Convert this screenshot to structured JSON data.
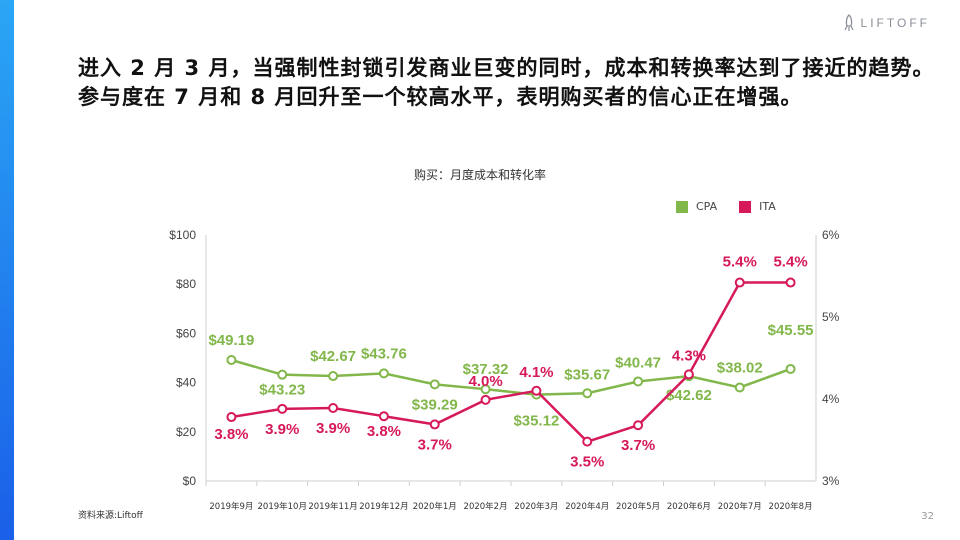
{
  "brand": {
    "name": "LIFTOFF"
  },
  "headline": "进入 2 月 3 月，当强制性封锁引发商业巨变的同时，成本和转换率达到了接近的趋势。参与度在 7 月和 8 月回升至一个较高水平，表明购买者的信心正在增强。",
  "footer": {
    "source": "资料来源:Liftoff",
    "page": "32"
  },
  "colors": {
    "cpa": "#82b74b",
    "ita": "#d6195b",
    "accent": "#1a5fe8"
  },
  "chart_data": {
    "type": "line",
    "title": "购买：月度成本和转化率",
    "categories": [
      "2019年9月",
      "2019年10月",
      "2019年11月",
      "2019年12月",
      "2020年1月",
      "2020年2月",
      "2020年3月",
      "2020年4月",
      "2020年5月",
      "2020年6月",
      "2020年7月",
      "2020年8月"
    ],
    "legend": [
      "CPA",
      "ITA"
    ],
    "legend_position": "top-right",
    "left_axis": {
      "ticks": [
        "$100",
        "$80",
        "$60",
        "$40",
        "$20",
        "$0"
      ],
      "ylim": [
        0,
        100
      ]
    },
    "right_axis": {
      "ticks": [
        "6%",
        "5%",
        "4%",
        "3%"
      ],
      "ylim": [
        3,
        6
      ]
    },
    "series": [
      {
        "name": "CPA",
        "axis": "left",
        "values": [
          49.19,
          43.23,
          42.67,
          43.76,
          39.29,
          37.32,
          35.12,
          35.67,
          40.47,
          42.62,
          38.02,
          45.55
        ],
        "labels": [
          "$49.19",
          "$43.23",
          "$42.67",
          "$43.76",
          "$39.29",
          "$37.32",
          "$35.12",
          "$35.67",
          "$40.47",
          "$42.62",
          "$38.02",
          "$45.55"
        ]
      },
      {
        "name": "ITA",
        "axis": "right",
        "values": [
          3.78,
          3.88,
          3.89,
          3.79,
          3.69,
          3.99,
          4.1,
          3.48,
          3.68,
          4.3,
          5.42,
          5.42
        ],
        "labels": [
          "3.8%",
          "3.9%",
          "3.9%",
          "3.8%",
          "3.7%",
          "4.0%",
          "4.1%",
          "3.5%",
          "3.7%",
          "4.3%",
          "5.4%",
          "5.4%"
        ]
      }
    ]
  }
}
